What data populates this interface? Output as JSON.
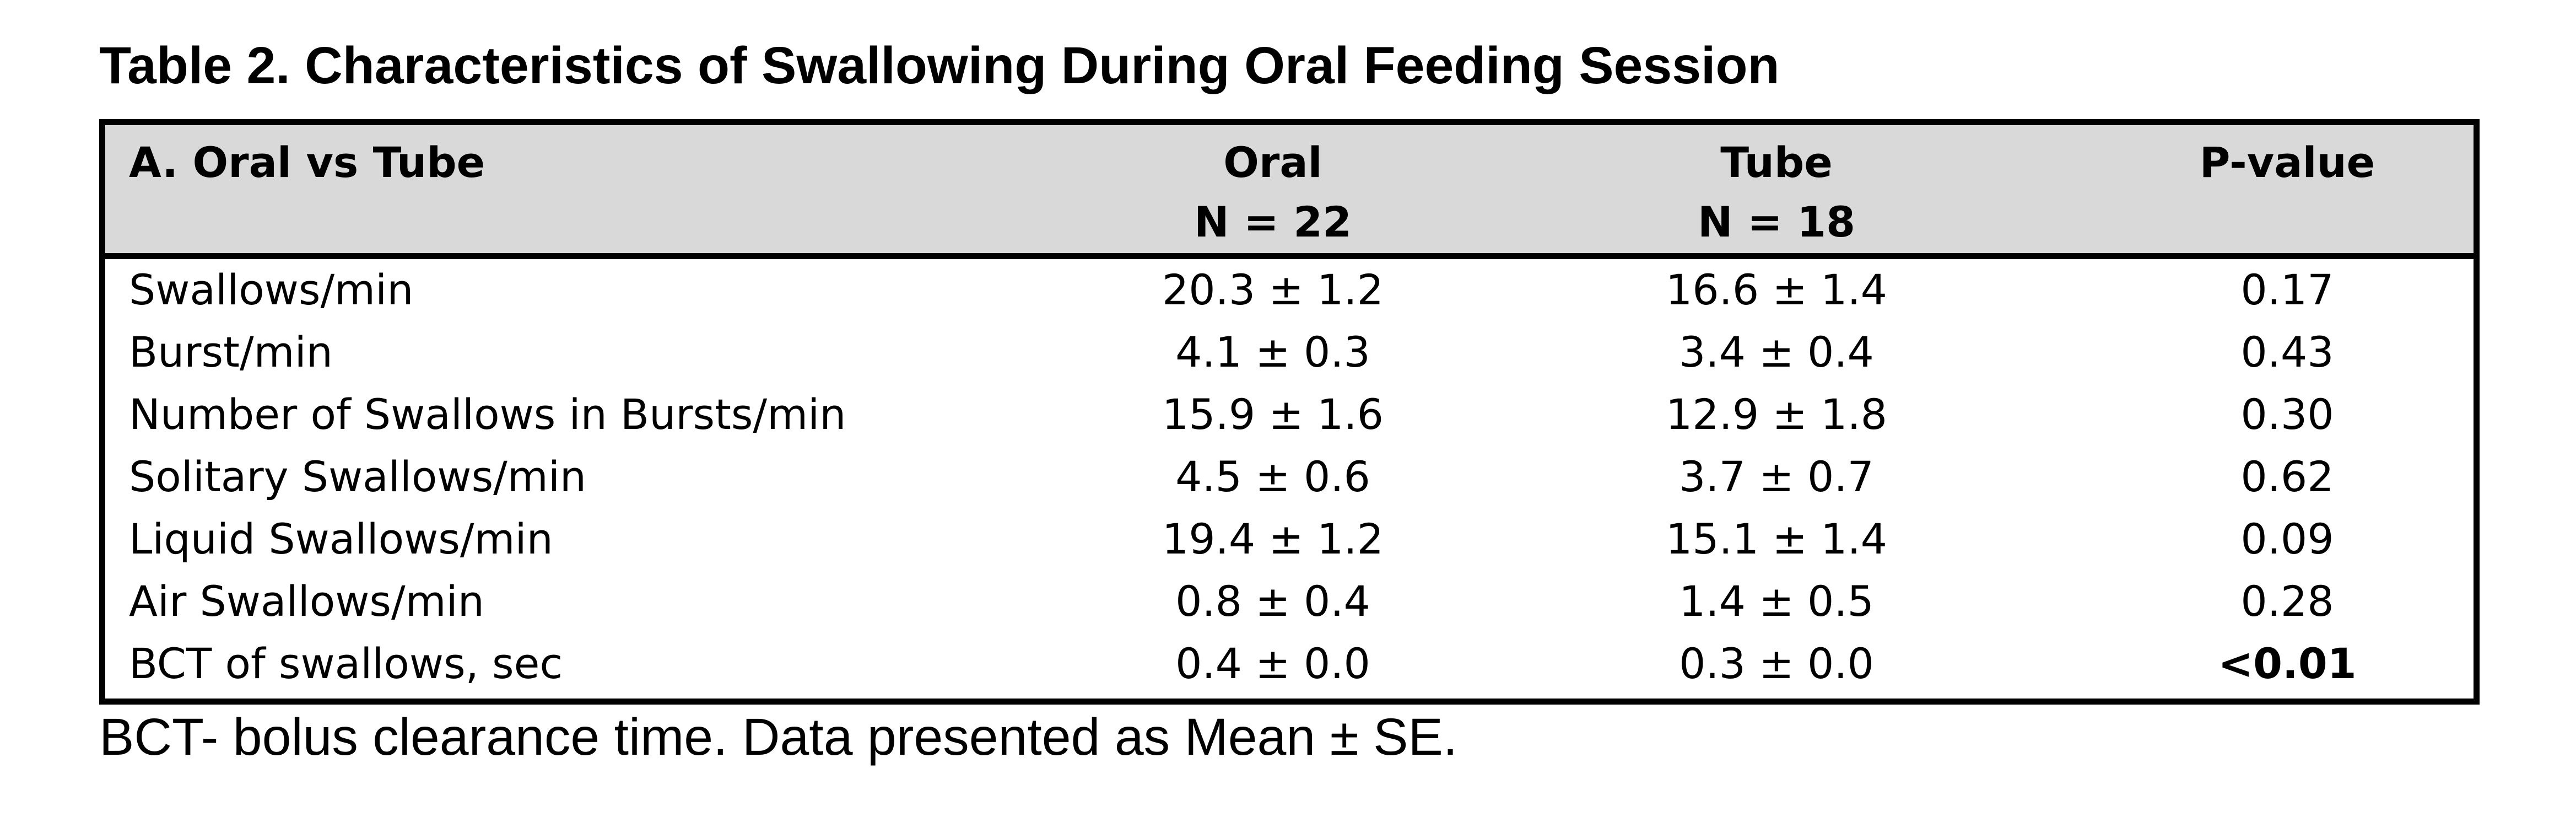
{
  "title": "Table 2. Characteristics  of Swallowing During Oral Feeding Session",
  "table": {
    "section_label": "A.   Oral vs Tube",
    "columns": [
      {
        "label": "Oral",
        "sub": "N = 22"
      },
      {
        "label": "Tube",
        "sub": "N = 18"
      },
      {
        "label": "P-value",
        "sub": ""
      }
    ],
    "rows": [
      {
        "label": "Swallows/min",
        "oral": "20.3 ± 1.2",
        "tube": "16.6 ± 1.4",
        "p": "0.17"
      },
      {
        "label": "Burst/min",
        "oral": "4.1 ± 0.3",
        "tube": "3.4 ± 0.4",
        "p": "0.43"
      },
      {
        "label": "Number of Swallows in Bursts/min",
        "oral": "15.9 ± 1.6",
        "tube": "12.9 ± 1.8",
        "p": "0.30"
      },
      {
        "label": "Solitary Swallows/min",
        "oral": "4.5 ± 0.6",
        "tube": "3.7 ± 0.7",
        "p": "0.62"
      },
      {
        "label": "Liquid Swallows/min",
        "oral": "19.4 ± 1.2",
        "tube": "15.1 ± 1.4",
        "p": "0.09"
      },
      {
        "label": "Air Swallows/min",
        "oral": "0.8 ± 0.4",
        "tube": "1.4 ± 0.5",
        "p": "0.28"
      },
      {
        "label": "BCT of swallows, sec",
        "oral": "0.4 ± 0.0",
        "tube": "0.3 ± 0.0",
        "p": "<0.01",
        "p_bold": true
      }
    ]
  },
  "footnote": "BCT- bolus clearance time. Data presented  as Mean ± SE.",
  "colors": {
    "header_background": "#d9d9d9",
    "border": "#000000"
  }
}
